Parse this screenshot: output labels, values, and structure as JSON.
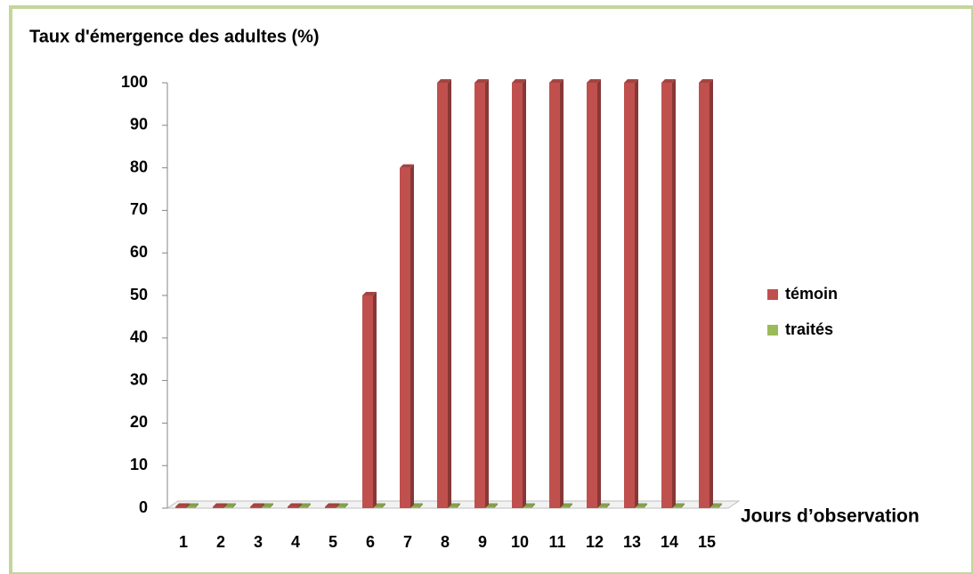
{
  "chart_data": {
    "type": "bar",
    "title": "Taux d'émergence des adultes (%)",
    "x_label": "Jours d’observation",
    "categories": [
      "1",
      "2",
      "3",
      "4",
      "5",
      "6",
      "7",
      "8",
      "9",
      "10",
      "11",
      "12",
      "13",
      "14",
      "15"
    ],
    "series": [
      {
        "name": "témoin",
        "color": "#c0504d",
        "values": [
          0,
          0,
          0,
          0,
          0,
          50,
          80,
          100,
          100,
          100,
          100,
          100,
          100,
          100,
          100
        ]
      },
      {
        "name": "traités",
        "color": "#9bbb59",
        "values": [
          0,
          0,
          0,
          0,
          0,
          0,
          0,
          0,
          0,
          0,
          0,
          0,
          0,
          0,
          0
        ]
      }
    ],
    "ylim": [
      0,
      100
    ],
    "yticks": [
      0,
      10,
      20,
      30,
      40,
      50,
      60,
      70,
      80,
      90,
      100
    ],
    "grid": false,
    "legend": "right"
  }
}
